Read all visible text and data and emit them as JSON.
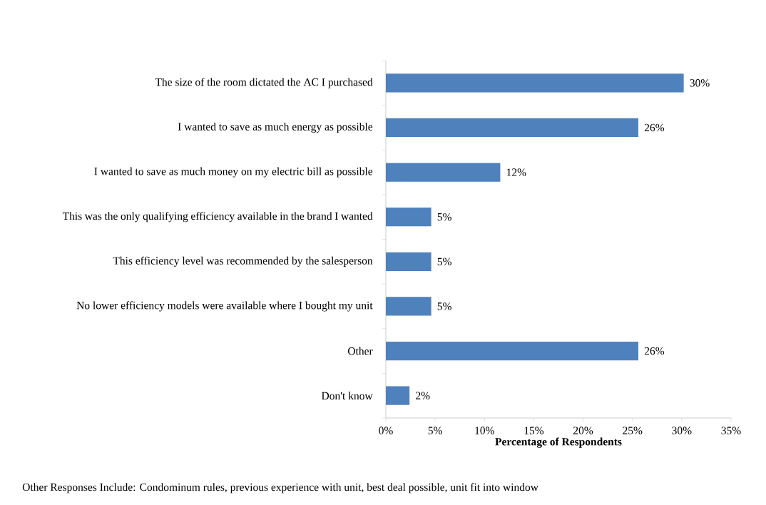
{
  "chart_data": {
    "type": "bar",
    "orientation": "horizontal",
    "xlabel": "Percentage of Respondents",
    "categories": [
      "The size of the room dictated  the AC I purchased",
      "I wanted to save as much energy as possible",
      "I wanted to save as much money on my electric bill as possible",
      "This was the only qualifying efficiency available in the brand I wanted",
      "This efficiency level was recommended by the salesperson",
      "No lower efficiency models were available where I bought my unit",
      "Other",
      "Don't know"
    ],
    "values": [
      30.2,
      25.6,
      11.6,
      4.6,
      4.6,
      4.6,
      25.6,
      2.4
    ],
    "value_labels": [
      "30%",
      "26%",
      "12%",
      "5%",
      "5%",
      "5%",
      "26%",
      "2%"
    ],
    "color": "#4f81bd",
    "xlim": [
      0,
      35
    ],
    "xticks": [
      {
        "value": 0,
        "label": "0%"
      },
      {
        "value": 5,
        "label": "5%"
      },
      {
        "value": 10,
        "label": "10%"
      },
      {
        "value": 15,
        "label": "15%"
      },
      {
        "value": 20,
        "label": "20%"
      },
      {
        "value": 25,
        "label": "25%"
      },
      {
        "value": 30,
        "label": "30%"
      },
      {
        "value": 35,
        "label": "35%"
      }
    ],
    "annotations": [
      "Other Responses Include: Condominum rules, previous experience with unit,  best deal possible, unit fit into window"
    ]
  }
}
